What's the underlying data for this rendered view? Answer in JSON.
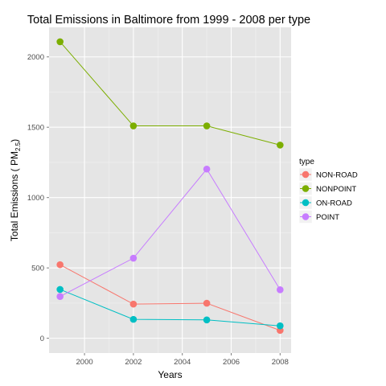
{
  "chart_data": {
    "type": "line",
    "title": "Total Emissions in Baltimore from 1999 - 2008 per type",
    "xlabel": "Years",
    "ylabel_main": "Total Emissions ( PM",
    "ylabel_sub": "2.5",
    "ylabel_close": ")",
    "x": [
      1999,
      2002,
      2005,
      2008
    ],
    "xlim": [
      1998.55,
      2008.45
    ],
    "ylim": [
      -105,
      2210
    ],
    "x_ticks": [
      2000,
      2002,
      2004,
      2006,
      2008
    ],
    "y_ticks": [
      0,
      500,
      1000,
      1500,
      2000
    ],
    "grid": true,
    "legend": {
      "title": "type",
      "position": "right"
    },
    "series": [
      {
        "name": "NON-ROAD",
        "color": "#F8766D",
        "values": [
          522.94,
          242.85,
          248.93,
          55.82
        ]
      },
      {
        "name": "NONPOINT",
        "color": "#7CAE00",
        "values": [
          2107.63,
          1509.5,
          1509.5,
          1373.21
        ]
      },
      {
        "name": "ON-ROAD",
        "color": "#00BFC4",
        "values": [
          346.82,
          134.31,
          130.43,
          88.28
        ]
      },
      {
        "name": "POINT",
        "color": "#C77CFF",
        "values": [
          296.8,
          569.26,
          1202.49,
          344.98
        ]
      }
    ]
  }
}
